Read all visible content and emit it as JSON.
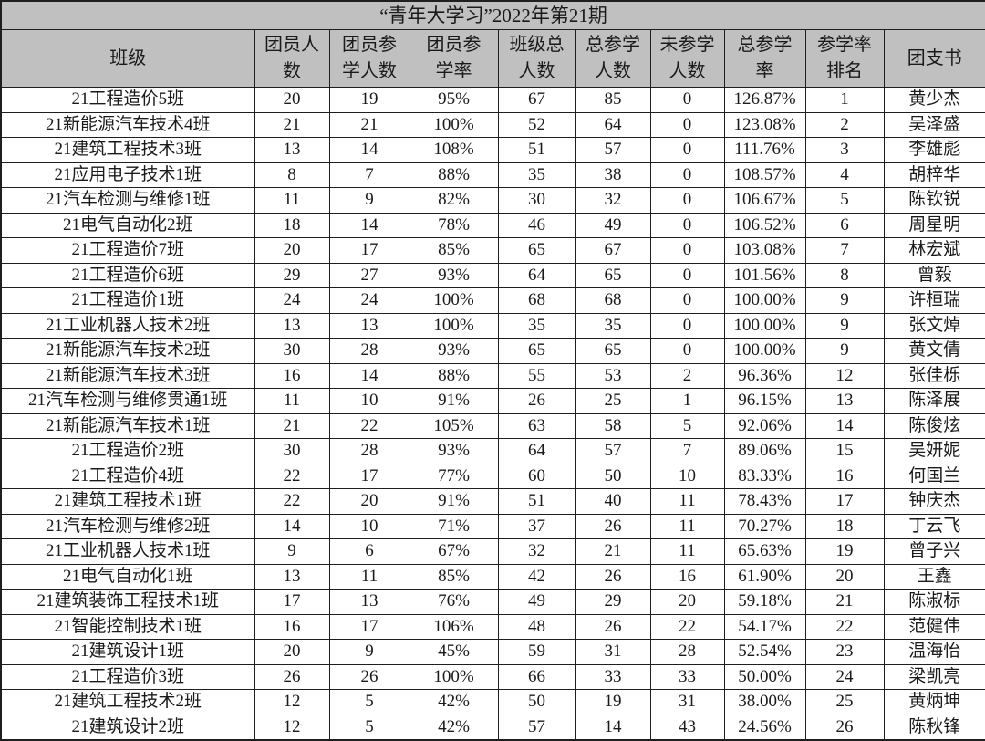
{
  "title": "“青年大学习”2022年第21期",
  "colors": {
    "header_bg": "#c0c0c0",
    "row_bg": "#ffffff",
    "border": "#1f1f1f",
    "text": "#1a1a1a"
  },
  "table": {
    "columns": [
      "班级",
      "团员人\n数",
      "团员参\n学人数",
      "团员参\n学率",
      "班级总\n人数",
      "总参学\n人数",
      "未参学\n人数",
      "总参学\n率",
      "参学率\n排名",
      "团支书"
    ],
    "rows": [
      [
        "21工程造价5班",
        "20",
        "19",
        "95%",
        "67",
        "85",
        "0",
        "126.87%",
        "1",
        "黄少杰"
      ],
      [
        "21新能源汽车技术4班",
        "21",
        "21",
        "100%",
        "52",
        "64",
        "0",
        "123.08%",
        "2",
        "吴泽盛"
      ],
      [
        "21建筑工程技术3班",
        "13",
        "14",
        "108%",
        "51",
        "57",
        "0",
        "111.76%",
        "3",
        "李雄彪"
      ],
      [
        "21应用电子技术1班",
        "8",
        "7",
        "88%",
        "35",
        "38",
        "0",
        "108.57%",
        "4",
        "胡梓华"
      ],
      [
        "21汽车检测与维修1班",
        "11",
        "9",
        "82%",
        "30",
        "32",
        "0",
        "106.67%",
        "5",
        "陈钦锐"
      ],
      [
        "21电气自动化2班",
        "18",
        "14",
        "78%",
        "46",
        "49",
        "0",
        "106.52%",
        "6",
        "周星明"
      ],
      [
        "21工程造价7班",
        "20",
        "17",
        "85%",
        "65",
        "67",
        "0",
        "103.08%",
        "7",
        "林宏斌"
      ],
      [
        "21工程造价6班",
        "29",
        "27",
        "93%",
        "64",
        "65",
        "0",
        "101.56%",
        "8",
        "曾毅"
      ],
      [
        "21工程造价1班",
        "24",
        "24",
        "100%",
        "68",
        "68",
        "0",
        "100.00%",
        "9",
        "许桓瑞"
      ],
      [
        "21工业机器人技术2班",
        "13",
        "13",
        "100%",
        "35",
        "35",
        "0",
        "100.00%",
        "9",
        "张文焯"
      ],
      [
        "21新能源汽车技术2班",
        "30",
        "28",
        "93%",
        "65",
        "65",
        "0",
        "100.00%",
        "9",
        "黄文倩"
      ],
      [
        "21新能源汽车技术3班",
        "16",
        "14",
        "88%",
        "55",
        "53",
        "2",
        "96.36%",
        "12",
        "张佳栎"
      ],
      [
        "21汽车检测与维修贯通1班",
        "11",
        "10",
        "91%",
        "26",
        "25",
        "1",
        "96.15%",
        "13",
        "陈泽展"
      ],
      [
        "21新能源汽车技术1班",
        "21",
        "22",
        "105%",
        "63",
        "58",
        "5",
        "92.06%",
        "14",
        "陈俊炫"
      ],
      [
        "21工程造价2班",
        "30",
        "28",
        "93%",
        "64",
        "57",
        "7",
        "89.06%",
        "15",
        "吴妍妮"
      ],
      [
        "21工程造价4班",
        "22",
        "17",
        "77%",
        "60",
        "50",
        "10",
        "83.33%",
        "16",
        "何国兰"
      ],
      [
        "21建筑工程技术1班",
        "22",
        "20",
        "91%",
        "51",
        "40",
        "11",
        "78.43%",
        "17",
        "钟庆杰"
      ],
      [
        "21汽车检测与维修2班",
        "14",
        "10",
        "71%",
        "37",
        "26",
        "11",
        "70.27%",
        "18",
        "丁云飞"
      ],
      [
        "21工业机器人技术1班",
        "9",
        "6",
        "67%",
        "32",
        "21",
        "11",
        "65.63%",
        "19",
        "曾子兴"
      ],
      [
        "21电气自动化1班",
        "13",
        "11",
        "85%",
        "42",
        "26",
        "16",
        "61.90%",
        "20",
        "王鑫"
      ],
      [
        "21建筑装饰工程技术1班",
        "17",
        "13",
        "76%",
        "49",
        "29",
        "20",
        "59.18%",
        "21",
        "陈淑标"
      ],
      [
        "21智能控制技术1班",
        "16",
        "17",
        "106%",
        "48",
        "26",
        "22",
        "54.17%",
        "22",
        "范健伟"
      ],
      [
        "21建筑设计1班",
        "20",
        "9",
        "45%",
        "59",
        "31",
        "28",
        "52.54%",
        "23",
        "温海怡"
      ],
      [
        "21工程造价3班",
        "26",
        "26",
        "100%",
        "66",
        "33",
        "33",
        "50.00%",
        "24",
        "梁凯亮"
      ],
      [
        "21建筑工程技术2班",
        "12",
        "5",
        "42%",
        "50",
        "19",
        "31",
        "38.00%",
        "25",
        "黄炳坤"
      ],
      [
        "21建筑设计2班",
        "12",
        "5",
        "42%",
        "57",
        "14",
        "43",
        "24.56%",
        "26",
        "陈秋锋"
      ]
    ]
  }
}
